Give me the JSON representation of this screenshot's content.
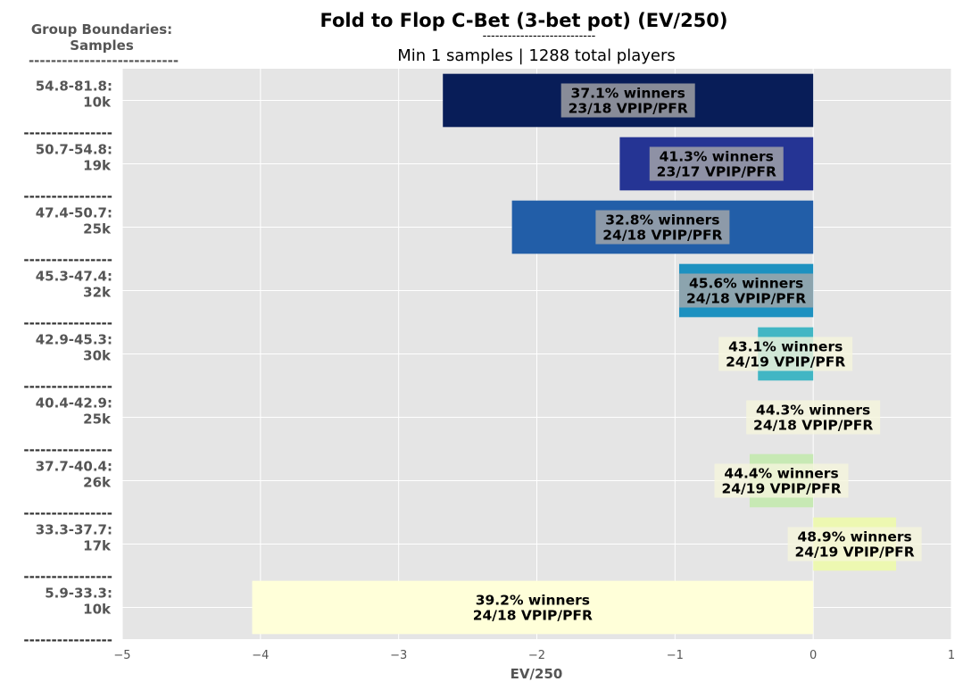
{
  "header": {
    "title": "Fold to Flop C-Bet (3-bet pot) (EV/250)",
    "title_rule": "---------------------------",
    "subtitle": "Min 1 samples | 1288 total players",
    "group_heading_line1": "Group Boundaries:",
    "group_heading_line2": "Samples",
    "group_heading_rule": "---------------------------",
    "row_separator": "----------------"
  },
  "colors": {
    "plot_background": "#e5e5e5",
    "grid": "#ffffff",
    "label_box_dark": "#a9a9a9",
    "label_box_light": "#f5f5dc"
  },
  "chart_data": {
    "type": "bar",
    "orientation": "horizontal",
    "title": "Fold to Flop C-Bet (3-bet pot) (EV/250)",
    "subtitle": "Min 1 samples | 1288 total players",
    "xlabel": "EV/250",
    "ylabel": "",
    "xlim": [
      -5,
      1
    ],
    "xticks": [
      "−5",
      "−4",
      "−3",
      "−2",
      "−1",
      "0",
      "1"
    ],
    "grid": true,
    "bars": [
      {
        "range": "54.8-81.8:",
        "samples": "10k",
        "value": -2.68,
        "winners": "37.1% winners",
        "vpip_pfr": "23/18 VPIP/PFR",
        "color": "#081d58",
        "box": "dark"
      },
      {
        "range": "50.7-54.8:",
        "samples": "19k",
        "value": -1.4,
        "winners": "41.3% winners",
        "vpip_pfr": "23/17 VPIP/PFR",
        "color": "#253494",
        "box": "dark"
      },
      {
        "range": "47.4-50.7:",
        "samples": "25k",
        "value": -2.18,
        "winners": "32.8% winners",
        "vpip_pfr": "24/18 VPIP/PFR",
        "color": "#225ea8",
        "box": "dark"
      },
      {
        "range": "45.3-47.4:",
        "samples": "32k",
        "value": -0.97,
        "winners": "45.6% winners",
        "vpip_pfr": "24/18 VPIP/PFR",
        "color": "#1d91c0",
        "box": "dark"
      },
      {
        "range": "42.9-45.3:",
        "samples": "30k",
        "value": -0.4,
        "winners": "43.1% winners",
        "vpip_pfr": "24/19 VPIP/PFR",
        "color": "#41b6c4",
        "box": "light"
      },
      {
        "range": "40.4-42.9:",
        "samples": "25k",
        "value": 0.0,
        "winners": "44.3% winners",
        "vpip_pfr": "24/18 VPIP/PFR",
        "color": "#7fcdbb",
        "box": "light"
      },
      {
        "range": "37.7-40.4:",
        "samples": "26k",
        "value": -0.46,
        "winners": "44.4% winners",
        "vpip_pfr": "24/19 VPIP/PFR",
        "color": "#c7e9b4",
        "box": "light"
      },
      {
        "range": "33.3-37.7:",
        "samples": "17k",
        "value": 0.6,
        "winners": "48.9% winners",
        "vpip_pfr": "24/19 VPIP/PFR",
        "color": "#edf8b1",
        "box": "light"
      },
      {
        "range": "5.9-33.3:",
        "samples": "10k",
        "value": -4.06,
        "winners": "39.2% winners",
        "vpip_pfr": "24/18 VPIP/PFR",
        "color": "#ffffd9",
        "box": "none"
      }
    ]
  }
}
